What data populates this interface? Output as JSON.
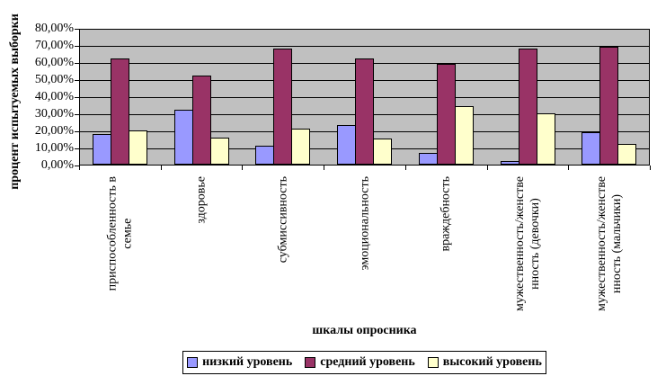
{
  "chart_data": {
    "type": "bar",
    "xlabel": "шкалы опросника",
    "ylabel": "процент испытуемых выборки",
    "ylim": [
      0,
      80
    ],
    "grid": true,
    "legend_position": "bottom",
    "plot_background": "#C0C0C0",
    "y_tick_labels": [
      "80,00%",
      "70,00%",
      "60,00%",
      "50,00%",
      "40,00%",
      "30,00%",
      "20,00%",
      "10,00%",
      "0,00%"
    ],
    "categories": [
      "приспособленность в\nсемье",
      "здоровье",
      "субмиссивность",
      "эмоциональность",
      "враждебность",
      "мужественность/женстве\nнность (девочки)",
      "мужественность/женстве\nнность (мальчики)"
    ],
    "series": [
      {
        "name": "низкий уровень",
        "color": "#9999FF",
        "values": [
          18,
          32,
          11,
          23,
          7,
          2,
          19
        ]
      },
      {
        "name": "средний уровень",
        "color": "#993366",
        "values": [
          62,
          52,
          68,
          62,
          59,
          68,
          69
        ]
      },
      {
        "name": "высокий уровень",
        "color": "#FFFFCC",
        "values": [
          20,
          16,
          21,
          15,
          34,
          30,
          12
        ]
      }
    ]
  }
}
